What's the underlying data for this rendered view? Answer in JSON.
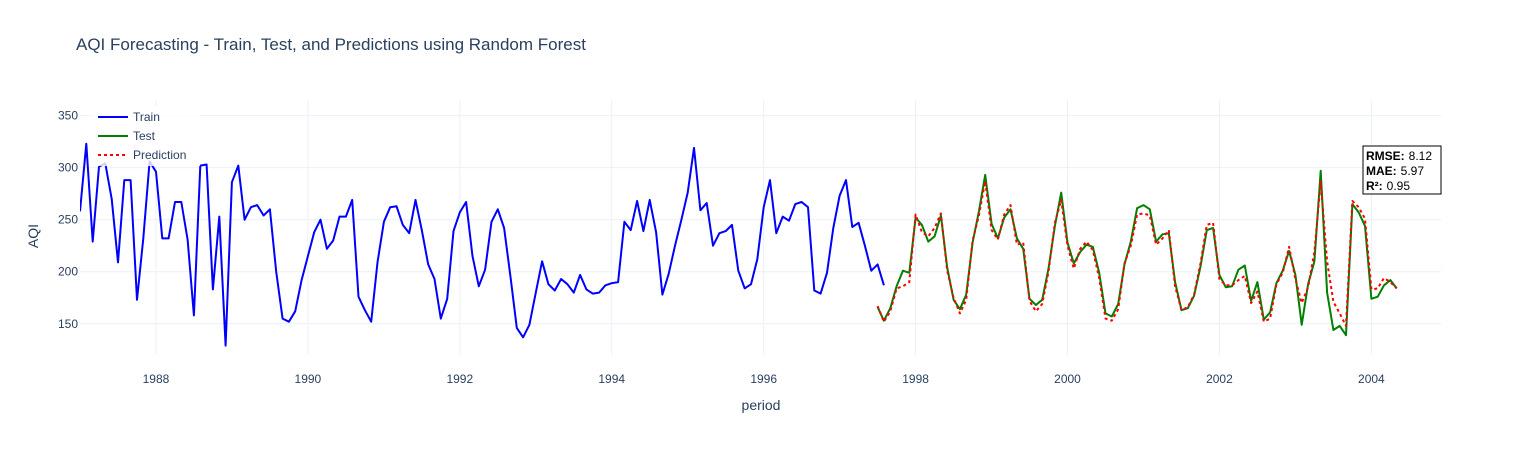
{
  "chart_data": {
    "type": "line",
    "title": "AQI Forecasting - Train, Test, and Predictions using Random Forest",
    "xlabel": "period",
    "ylabel": "AQI",
    "x_ticks": [
      "1988",
      "1990",
      "1992",
      "1994",
      "1996",
      "1998",
      "2000",
      "2002",
      "2004"
    ],
    "y_ticks": [
      "150",
      "200",
      "250",
      "300",
      "350"
    ],
    "xlim": [
      "1987-01",
      "2004-12"
    ],
    "ylim": [
      120,
      365
    ],
    "grid": true,
    "legend_position": "top-left",
    "metrics": [
      {
        "label": "RMSE:",
        "value": "8.12"
      },
      {
        "label": "MAE:",
        "value": "5.97"
      },
      {
        "label": "R²:",
        "value": "0.95"
      }
    ],
    "series": [
      {
        "name": "Train",
        "color": "#0000ff",
        "dash": "solid",
        "start": "1987-01",
        "freq": "monthly",
        "values": [
          258,
          323,
          229,
          301,
          304,
          270,
          209,
          288,
          288,
          173,
          232,
          306,
          296,
          232,
          232,
          267,
          267,
          231,
          158,
          302,
          303,
          183,
          253,
          129,
          286,
          302,
          250,
          262,
          264,
          254,
          260,
          200,
          155,
          152,
          162,
          192,
          215,
          238,
          250,
          222,
          230,
          253,
          253,
          269,
          176,
          163,
          152,
          209,
          248,
          262,
          263,
          245,
          237,
          269,
          240,
          207,
          193,
          155,
          174,
          239,
          257,
          267,
          215,
          186,
          202,
          248,
          260,
          242,
          195,
          146,
          137,
          149,
          180,
          210,
          188,
          182,
          193,
          188,
          180,
          197,
          183,
          179,
          180,
          187,
          189,
          190,
          248,
          240,
          268,
          239,
          269,
          238,
          178,
          198,
          225,
          250,
          276,
          319,
          259,
          266,
          225,
          237,
          239,
          245,
          201,
          184,
          188,
          212,
          262,
          288,
          237,
          253,
          249,
          265,
          267,
          262,
          182,
          179,
          199,
          242,
          273,
          288,
          243,
          247,
          225,
          201,
          207,
          187
        ]
      },
      {
        "name": "Test",
        "color": "#008000",
        "dash": "solid",
        "start": "1997-07",
        "freq": "monthly",
        "values": [
          166,
          153,
          165,
          186,
          201,
          199,
          252,
          245,
          229,
          234,
          254,
          204,
          173,
          164,
          178,
          228,
          258,
          293,
          246,
          232,
          252,
          260,
          232,
          222,
          174,
          168,
          173,
          203,
          244,
          276,
          228,
          208,
          219,
          226,
          224,
          199,
          160,
          157,
          169,
          207,
          229,
          261,
          264,
          260,
          229,
          236,
          237,
          190,
          163,
          165,
          177,
          205,
          240,
          242,
          197,
          185,
          186,
          202,
          206,
          172,
          190,
          154,
          161,
          189,
          201,
          220,
          197,
          149,
          188,
          210,
          297,
          180,
          144,
          148,
          139,
          265,
          257,
          244,
          174,
          176,
          187,
          192,
          184
        ]
      },
      {
        "name": "Prediction",
        "color": "#ff0000",
        "dash": "dot",
        "start": "1997-07",
        "freq": "monthly",
        "values": [
          167,
          152,
          162,
          184,
          186,
          190,
          255,
          238,
          234,
          242,
          256,
          201,
          175,
          160,
          173,
          230,
          254,
          287,
          240,
          231,
          255,
          264,
          226,
          228,
          172,
          162,
          169,
          200,
          247,
          269,
          225,
          203,
          222,
          229,
          221,
          194,
          155,
          153,
          164,
          208,
          225,
          255,
          256,
          254,
          226,
          232,
          240,
          186,
          163,
          166,
          178,
          208,
          245,
          247,
          193,
          187,
          187,
          192,
          196,
          170,
          181,
          152,
          155,
          188,
          199,
          224,
          193,
          170,
          185,
          219,
          287,
          210,
          171,
          160,
          148,
          268,
          262,
          251,
          183,
          184,
          194,
          190,
          184
        ]
      }
    ]
  }
}
